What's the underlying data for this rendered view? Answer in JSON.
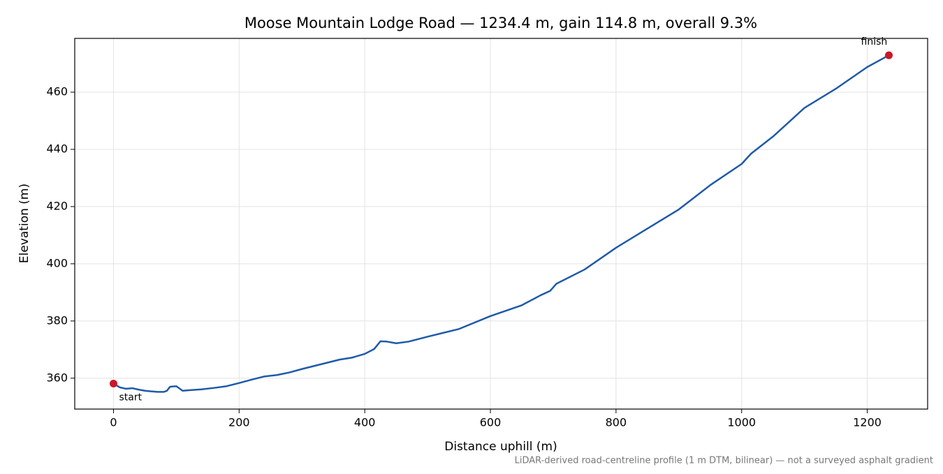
{
  "chart_data": {
    "type": "line",
    "title": "Moose Mountain Lodge Road — 1234.4 m, gain 114.8 m, overall 9.3%",
    "xlabel": "Distance uphill (m)",
    "ylabel": "Elevation (m)",
    "footnote": "LiDAR-derived road-centreline profile (1 m DTM, bilinear) — not a surveyed asphalt gradient",
    "annotations": [
      "start",
      "finish"
    ],
    "marker_color": "#c8192a",
    "x": [
      0,
      10,
      20,
      30,
      40,
      50,
      60,
      70,
      80,
      85,
      90,
      100,
      110,
      120,
      140,
      160,
      180,
      200,
      220,
      240,
      260,
      280,
      300,
      320,
      340,
      360,
      380,
      400,
      415,
      425,
      435,
      450,
      470,
      500,
      550,
      600,
      650,
      680,
      695,
      705,
      750,
      800,
      850,
      900,
      950,
      1000,
      1015,
      1050,
      1100,
      1150,
      1200,
      1234.4
    ],
    "series": [
      {
        "color": "#1f5aa8",
        "values": [
          358.1,
          356.8,
          356.3,
          356.5,
          356.0,
          355.6,
          355.4,
          355.2,
          355.2,
          355.6,
          357.0,
          357.2,
          355.6,
          355.8,
          356.1,
          356.6,
          357.2,
          358.3,
          359.5,
          360.6,
          361.1,
          362.0,
          363.2,
          364.3,
          365.4,
          366.5,
          367.2,
          368.5,
          370.2,
          372.9,
          372.8,
          372.2,
          372.8,
          374.5,
          377.2,
          381.7,
          385.5,
          389.0,
          390.5,
          393.0,
          398.0,
          405.6,
          412.3,
          419.0,
          427.5,
          434.9,
          438.5,
          444.5,
          454.5,
          461.2,
          468.8,
          472.9
        ]
      }
    ],
    "xlim": [
      -61.7,
      1296.1
    ],
    "ylim": [
      349.2,
      478.8
    ],
    "xticks": [
      0,
      200,
      400,
      600,
      800,
      1000,
      1200
    ],
    "yticks": [
      360,
      380,
      400,
      420,
      440,
      460
    ],
    "grid": true
  }
}
